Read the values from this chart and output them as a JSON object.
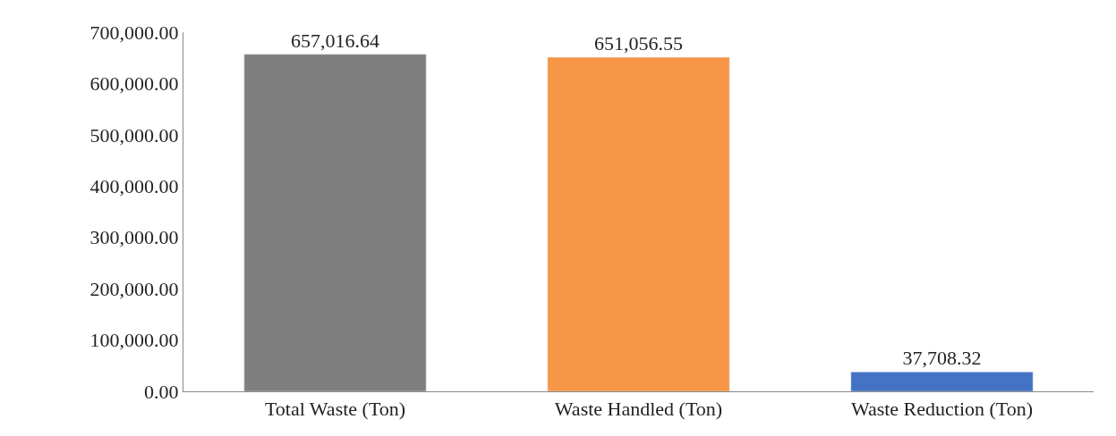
{
  "chart_data": {
    "type": "bar",
    "categories": [
      "Total Waste (Ton)",
      "Waste Handled (Ton)",
      "Waste Reduction (Ton)"
    ],
    "values": [
      657016.64,
      651056.55,
      37708.32
    ],
    "colors": [
      "#7f7f7f",
      "#f79646",
      "#4472c4"
    ],
    "value_labels": [
      "657,016.64",
      "651,056.55",
      "37,708.32"
    ],
    "ylim": [
      0,
      700000
    ],
    "yticks": [
      {
        "value": 0,
        "label": "0.00"
      },
      {
        "value": 100000,
        "label": "100,000.00"
      },
      {
        "value": 200000,
        "label": "200,000.00"
      },
      {
        "value": 300000,
        "label": "300,000.00"
      },
      {
        "value": 400000,
        "label": "400,000.00"
      },
      {
        "value": 500000,
        "label": "500,000.00"
      },
      {
        "value": 600000,
        "label": "600,000.00"
      },
      {
        "value": 700000,
        "label": "700,000.00"
      }
    ],
    "orientation": "vertical"
  }
}
